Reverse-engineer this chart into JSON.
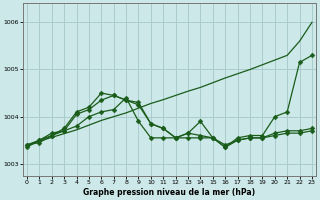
{
  "title": "Graphe pression niveau de la mer (hPa)",
  "bg_color": "#cce8e8",
  "grid_color": "#aacccc",
  "line_color": "#1a5c1a",
  "markersize": 2.5,
  "linewidth": 0.9,
  "xlim": [
    -0.3,
    23.3
  ],
  "ylim": [
    1002.75,
    1006.4
  ],
  "yticks": [
    1003,
    1004,
    1005,
    1006
  ],
  "xticks": [
    0,
    1,
    2,
    3,
    4,
    5,
    6,
    7,
    8,
    9,
    10,
    11,
    12,
    13,
    14,
    15,
    16,
    17,
    18,
    19,
    20,
    21,
    22,
    23
  ],
  "series_with_markers": [
    [
      1003.4,
      1003.5,
      1003.6,
      1003.75,
      1004.1,
      1004.2,
      1004.5,
      1004.45,
      1004.35,
      1004.25,
      1003.85,
      1003.75,
      1003.55,
      1003.65,
      1003.9,
      1003.55,
      1003.35,
      1003.5,
      1003.55,
      1003.55,
      1003.65,
      1003.7,
      1003.7,
      1003.75
    ],
    [
      1003.4,
      1003.45,
      1003.6,
      1003.7,
      1003.8,
      1004.0,
      1004.1,
      1004.15,
      1004.4,
      1003.9,
      1003.55,
      1003.55,
      1003.55,
      1003.55,
      1003.55,
      1003.55,
      1003.4,
      1003.5,
      1003.55,
      1003.55,
      1003.6,
      1003.65,
      1003.65,
      1003.7
    ],
    [
      1003.35,
      1003.5,
      1003.65,
      1003.7,
      1004.05,
      1004.15,
      1004.35,
      1004.45,
      1004.35,
      1004.3,
      1003.85,
      1003.75,
      1003.55,
      1003.65,
      1003.6,
      1003.55,
      1003.35,
      1003.55,
      1003.6,
      1003.6,
      1004.0,
      1004.1,
      1005.15,
      1005.3
    ]
  ],
  "series_smooth": [
    1003.4,
    1003.48,
    1003.56,
    1003.64,
    1003.72,
    1003.82,
    1003.92,
    1004.0,
    1004.08,
    1004.18,
    1004.28,
    1004.36,
    1004.45,
    1004.54,
    1004.62,
    1004.72,
    1004.82,
    1004.91,
    1005.0,
    1005.1,
    1005.2,
    1005.3,
    1005.6,
    1006.0
  ]
}
